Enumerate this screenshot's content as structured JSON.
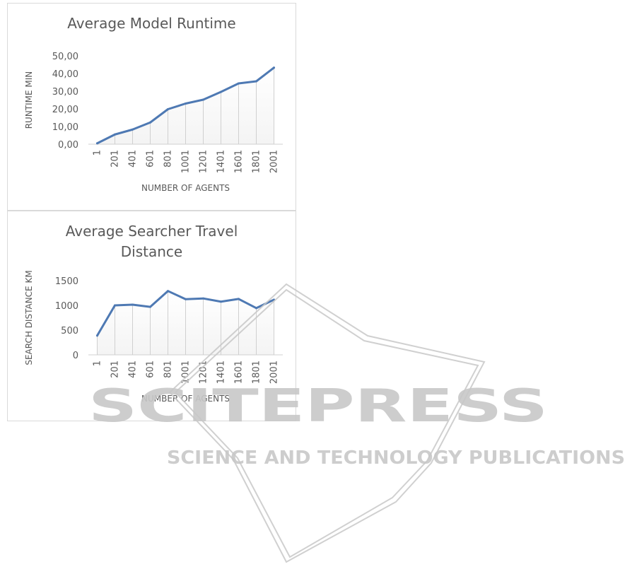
{
  "chart_data": [
    {
      "type": "area",
      "title": "Average Model Runtime",
      "xlabel": "NUMBER OF AGENTS",
      "ylabel": "RUNTIME MIN",
      "categories": [
        "1",
        "201",
        "401",
        "601",
        "801",
        "1001",
        "1201",
        "1401",
        "1601",
        "1801",
        "2001"
      ],
      "values": [
        0.5,
        5.5,
        8.3,
        12.3,
        19.8,
        23.0,
        25.2,
        29.6,
        34.4,
        35.6,
        43.3
      ],
      "ylim": [
        0,
        50
      ],
      "yticks": [
        "0,00",
        "10,00",
        "20,00",
        "30,00",
        "40,00",
        "50,00"
      ],
      "ytick_values": [
        0,
        10,
        20,
        30,
        40,
        50
      ],
      "grid": false,
      "legend": "none",
      "line_color": "#4e79b3"
    },
    {
      "type": "area",
      "title": "Average Searcher Travel Distance",
      "xlabel": "NUMBER OF AGENTS",
      "ylabel": "SEARCH DISTANCE KM",
      "categories": [
        "1",
        "201",
        "401",
        "601",
        "801",
        "1001",
        "1201",
        "1401",
        "1601",
        "1801",
        "2001"
      ],
      "values": [
        390,
        1000,
        1015,
        970,
        1290,
        1125,
        1140,
        1075,
        1130,
        945,
        1115
      ],
      "ylim": [
        0,
        1500
      ],
      "yticks": [
        "0",
        "500",
        "1000",
        "1500"
      ],
      "ytick_values": [
        0,
        500,
        1000,
        1500
      ],
      "grid": false,
      "legend": "none",
      "line_color": "#4e79b3"
    }
  ],
  "watermark": {
    "brand": "SCITEPRESS",
    "tagline": "SCIENCE AND TECHNOLOGY PUBLICATIONS",
    "color": "#c8c8c8"
  }
}
